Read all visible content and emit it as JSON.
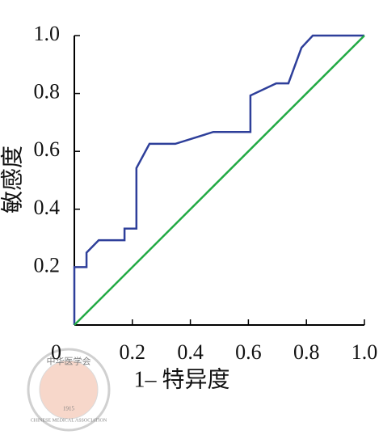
{
  "chart_data": {
    "type": "line",
    "x_label": "1– 特异度",
    "y_label": "敏感度",
    "series": [
      {
        "color": "#2e3f9a",
        "x": [
          0,
          0,
          0.042,
          0.042,
          0.084,
          0.173,
          0.173,
          0.214,
          0.214,
          0.259,
          0.348,
          0.479,
          0.607,
          0.607,
          0.696,
          0.738,
          0.783,
          0.822,
          1
        ],
        "values": [
          0,
          0.2,
          0.2,
          0.25,
          0.293,
          0.293,
          0.333,
          0.333,
          0.542,
          0.626,
          0.626,
          0.667,
          0.667,
          0.793,
          0.835,
          0.835,
          0.958,
          1,
          1
        ]
      },
      {
        "color": "#22aa44",
        "x": [
          0,
          1
        ],
        "values": [
          0,
          1
        ]
      }
    ],
    "xlim": [
      0,
      1
    ],
    "ylim": [
      0,
      1
    ],
    "xticks": [
      0,
      0.2,
      0.4,
      0.6,
      0.8,
      {
        "value": 1,
        "label": "1.0"
      }
    ],
    "yticks": [
      0.2,
      0.4,
      0.6,
      0.8,
      {
        "value": 1,
        "label": "1.0"
      }
    ]
  },
  "watermark": {
    "cn": "中华医学会",
    "en": "CHINESE MEDICAL ASSOCIATION",
    "year": "1915"
  }
}
